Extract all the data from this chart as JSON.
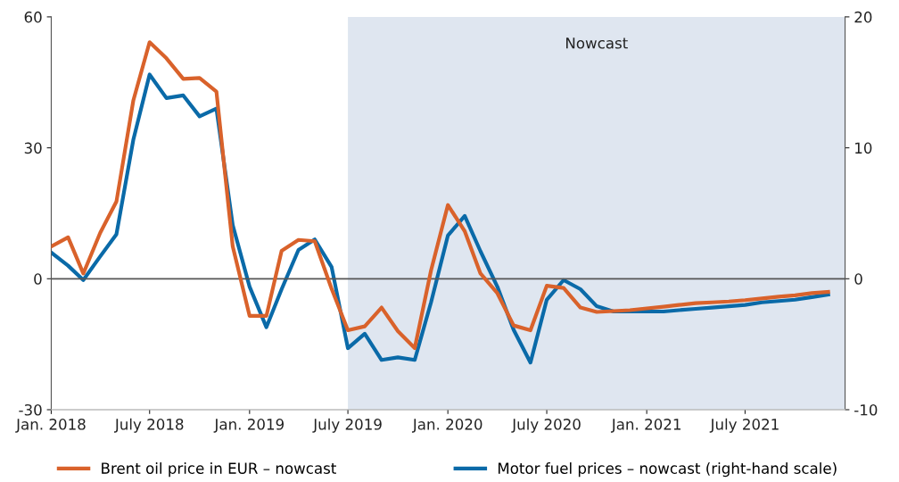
{
  "chart_data": {
    "type": "line",
    "x": [
      "2018-01",
      "2018-02",
      "2018-03",
      "2018-04",
      "2018-05",
      "2018-06",
      "2018-07",
      "2018-08",
      "2018-09",
      "2018-10",
      "2018-11",
      "2018-12",
      "2019-01",
      "2019-02",
      "2019-03",
      "2019-04",
      "2019-05",
      "2019-06",
      "2019-07",
      "2019-08",
      "2019-09",
      "2019-10",
      "2019-11",
      "2019-12",
      "2020-01",
      "2020-02",
      "2020-03",
      "2020-04",
      "2020-05",
      "2020-06",
      "2020-07",
      "2020-08",
      "2020-09",
      "2020-10",
      "2020-11",
      "2020-12",
      "2021-01",
      "2021-02",
      "2021-03",
      "2021-04",
      "2021-05",
      "2021-06",
      "2021-07",
      "2021-08",
      "2021-09",
      "2021-10",
      "2021-11",
      "2021-12"
    ],
    "series": [
      {
        "name": "Brent oil price in EUR – nowcast",
        "color": "#d9622b",
        "values": [
          7.4,
          9.5,
          1.2,
          10.5,
          17.7,
          40.8,
          54.2,
          50.5,
          45.8,
          46.0,
          42.9,
          7.4,
          -8.5,
          -8.5,
          6.4,
          8.9,
          8.6,
          -2.3,
          -11.8,
          -10.9,
          -6.6,
          -12.0,
          -15.9,
          1.9,
          16.9,
          10.9,
          1.2,
          -3.3,
          -10.7,
          -11.8,
          -1.6,
          -2.1,
          -6.6,
          -7.6,
          -7.4,
          -7.2,
          -6.8,
          -6.4,
          -6.0,
          -5.6,
          -5.4,
          -5.2,
          -4.9,
          -4.5,
          -4.1,
          -3.8,
          -3.3,
          -3.0
        ]
      },
      {
        "name": "Motor fuel prices – nowcast (right-hand scale)",
        "color": "#0a6aa8",
        "axis": "y2",
        "values": [
          2.0,
          1.0,
          -0.1,
          1.7,
          3.4,
          10.6,
          15.6,
          13.8,
          14.0,
          12.4,
          13.0,
          4.1,
          -0.6,
          -3.7,
          -0.8,
          2.2,
          3.0,
          0.9,
          -5.3,
          -4.2,
          -6.2,
          -6.0,
          -6.2,
          -1.8,
          3.3,
          4.8,
          2.1,
          -0.6,
          -3.9,
          -6.4,
          -1.6,
          -0.1,
          -0.8,
          -2.1,
          -2.5,
          -2.5,
          -2.5,
          -2.5,
          -2.4,
          -2.3,
          -2.2,
          -2.1,
          -2.0,
          -1.8,
          -1.7,
          -1.6,
          -1.4,
          -1.2
        ]
      }
    ],
    "xlim": [
      "2018-01",
      "2022-01"
    ],
    "xticks": [
      {
        "value": "2018-01",
        "label": "Jan. 2018"
      },
      {
        "value": "2018-07",
        "label": "July 2018"
      },
      {
        "value": "2019-01",
        "label": "Jan. 2019"
      },
      {
        "value": "2019-07",
        "label": "July 2019"
      },
      {
        "value": "2020-01",
        "label": "Jan. 2020"
      },
      {
        "value": "2020-07",
        "label": "July 2020"
      },
      {
        "value": "2021-01",
        "label": "Jan. 2021"
      },
      {
        "value": "2021-07",
        "label": "July 2021"
      }
    ],
    "ylim": [
      -30,
      60
    ],
    "yticks": [
      -30,
      0,
      30,
      60
    ],
    "y2lim": [
      -10,
      20
    ],
    "y2ticks": [
      -10,
      0,
      10,
      20
    ],
    "ref_lines": [
      {
        "axis": "y",
        "value": 0,
        "color": "#555555"
      }
    ],
    "bands": [
      {
        "axis": "x",
        "from": "2019-07",
        "to": "2022-01",
        "label": "Nowcast",
        "color": "#dfe6f0"
      }
    ],
    "grid": false,
    "legend": "bottom",
    "line_style": "solid",
    "marker": "none"
  }
}
